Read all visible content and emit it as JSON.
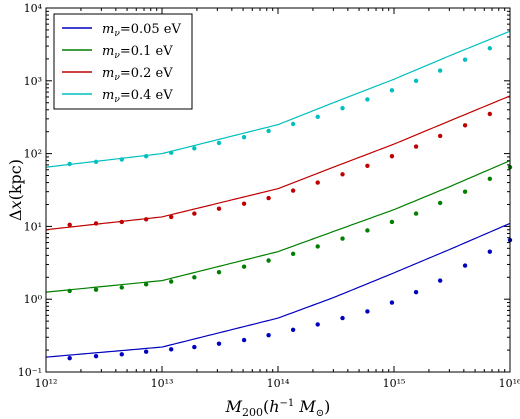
{
  "chart_data": {
    "type": "line",
    "xlabel": "M_200 (h^-1 M_⊙)",
    "ylabel": "Δx (kpc)",
    "xscale": "log",
    "yscale": "log",
    "xlim": [
      1000000000000.0,
      1e+16
    ],
    "ylim": [
      0.1,
      10000
    ],
    "grid": false,
    "legend_position": "top-left",
    "x_tick_labels": [
      "10¹²",
      "10¹³",
      "10¹⁴",
      "10¹⁵",
      "10¹⁶"
    ],
    "y_tick_labels": [
      "10⁻¹",
      "10⁰",
      "10¹",
      "10²",
      "10³",
      "10⁴"
    ],
    "x_tick_values": [
      1000000000000.0,
      10000000000000.0,
      100000000000000.0,
      1000000000000000.0,
      1e+16
    ],
    "y_tick_values": [
      0.1,
      1,
      10,
      100,
      1000,
      10000
    ],
    "legend_prefix": "m",
    "legend_subscript": "ν",
    "series": [
      {
        "name": "mν=0.05 eV",
        "legend_value": "=0.05 eV",
        "color": "#0000bf",
        "line": {
          "x": [
            1000000000000.0,
            10000000000000.0,
            100000000000000.0,
            300000000000000.0,
            1000000000000000.0,
            3000000000000000.0,
            1e+16
          ],
          "y": [
            0.16,
            0.22,
            0.55,
            1.05,
            2.3,
            4.8,
            11.0
          ]
        },
        "points": {
          "x": [
            1600000000000.0,
            2700000000000.0,
            4500000000000.0,
            7300000000000.0,
            12000000000000.0,
            19000000000000.0,
            31000000000000.0,
            51000000000000.0,
            83000000000000.0,
            135000000000000.0,
            220000000000000.0,
            360000000000000.0,
            590000000000000.0,
            960000000000000.0,
            1550000000000000.0,
            2500000000000000.0,
            4100000000000000.0,
            6700000000000000.0,
            1e+16
          ],
          "y": [
            0.155,
            0.165,
            0.175,
            0.19,
            0.205,
            0.22,
            0.245,
            0.275,
            0.32,
            0.38,
            0.45,
            0.55,
            0.68,
            0.9,
            1.25,
            1.8,
            2.9,
            4.5,
            6.5
          ]
        }
      },
      {
        "name": "mν=0.1 eV",
        "legend_value": "=0.1 eV",
        "color": "#007f00",
        "line": {
          "x": [
            1000000000000.0,
            10000000000000.0,
            100000000000000.0,
            300000000000000.0,
            1000000000000000.0,
            3000000000000000.0,
            1e+16
          ],
          "y": [
            1.25,
            1.8,
            4.5,
            8.5,
            17.0,
            35.0,
            80.0
          ]
        },
        "points": {
          "x": [
            1600000000000.0,
            2700000000000.0,
            4500000000000.0,
            7300000000000.0,
            12000000000000.0,
            19000000000000.0,
            31000000000000.0,
            51000000000000.0,
            83000000000000.0,
            135000000000000.0,
            220000000000000.0,
            360000000000000.0,
            590000000000000.0,
            960000000000000.0,
            1550000000000000.0,
            2500000000000000.0,
            4100000000000000.0,
            6700000000000000.0,
            1e+16
          ],
          "y": [
            1.3,
            1.35,
            1.45,
            1.6,
            1.75,
            2.0,
            2.35,
            2.8,
            3.4,
            4.2,
            5.3,
            6.8,
            8.8,
            11.5,
            15.0,
            21.0,
            30.0,
            45.0,
            65.0
          ]
        }
      },
      {
        "name": "mν=0.2 eV",
        "legend_value": "=0.2 eV",
        "color": "#bf0000",
        "line": {
          "x": [
            1000000000000.0,
            10000000000000.0,
            100000000000000.0,
            300000000000000.0,
            1000000000000000.0,
            3000000000000000.0,
            1e+16
          ],
          "y": [
            9.0,
            13.5,
            33.0,
            65.0,
            135.0,
            280.0,
            620.0
          ]
        },
        "points": {
          "x": [
            1600000000000.0,
            2700000000000.0,
            4500000000000.0,
            7300000000000.0,
            12000000000000.0,
            19000000000000.0,
            31000000000000.0,
            51000000000000.0,
            83000000000000.0,
            135000000000000.0,
            220000000000000.0,
            360000000000000.0,
            590000000000000.0,
            960000000000000.0,
            1550000000000000.0,
            2500000000000000.0,
            4100000000000000.0,
            6700000000000000.0
          ],
          "y": [
            10.5,
            11.0,
            11.5,
            12.5,
            13.5,
            15.0,
            17.5,
            20.5,
            24.5,
            31.0,
            40.0,
            52.0,
            68.0,
            92.0,
            125.0,
            175.0,
            245.0,
            350.0
          ]
        }
      },
      {
        "name": "mν=0.4 eV",
        "legend_value": "=0.4 eV",
        "color": "#00bfbf",
        "line": {
          "x": [
            1000000000000.0,
            10000000000000.0,
            100000000000000.0,
            300000000000000.0,
            1000000000000000.0,
            3000000000000000.0,
            1e+16
          ],
          "y": [
            65.0,
            100.0,
            250.0,
            500.0,
            1050.0,
            2200.0,
            4800.0
          ]
        },
        "points": {
          "x": [
            1600000000000.0,
            2700000000000.0,
            4500000000000.0,
            7300000000000.0,
            12000000000000.0,
            19000000000000.0,
            31000000000000.0,
            51000000000000.0,
            83000000000000.0,
            135000000000000.0,
            220000000000000.0,
            360000000000000.0,
            590000000000000.0,
            960000000000000.0,
            1550000000000000.0,
            2500000000000000.0,
            4100000000000000.0,
            6700000000000000.0
          ],
          "y": [
            72.0,
            77.0,
            83.0,
            92.0,
            103.0,
            118.0,
            140.0,
            168.0,
            205.0,
            255.0,
            320.0,
            420.0,
            555.0,
            740.0,
            1000.0,
            1380.0,
            1950.0,
            2800.0
          ]
        }
      }
    ]
  }
}
